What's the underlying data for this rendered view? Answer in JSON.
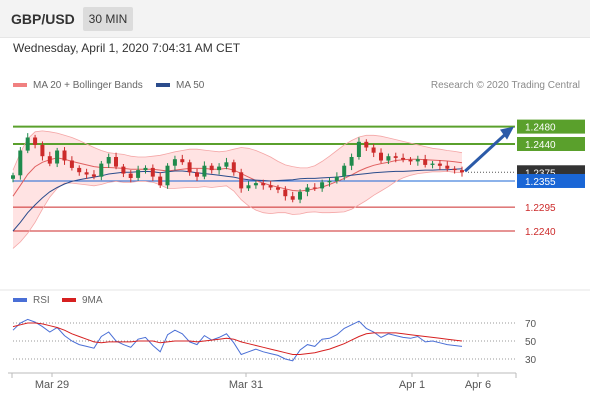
{
  "header": {
    "symbol": "GBP/USD",
    "timeframe": "30 MIN",
    "datetime": "Wednesday, April 1, 2020 7:04:31 AM CET"
  },
  "legend": {
    "ma20": "MA 20 + Bollinger Bands",
    "ma50": "MA 50",
    "ma20_color": "#f08080",
    "ma50_color": "#2b4c8c",
    "credit": "Research © 2020 Trading Central"
  },
  "chart_data": {
    "type": "candlestick",
    "symbol": "GBP/USD",
    "interval": "30 MIN",
    "date_ticks": [
      "Mar 29",
      "Mar 31",
      "Apr 1",
      "Apr 6"
    ],
    "current_price": 1.2375,
    "levels": [
      {
        "label": "1.2480",
        "value": 1.248,
        "kind": "target",
        "color": "#5aa02c"
      },
      {
        "label": "1.2440",
        "value": 1.244,
        "kind": "resistance",
        "color": "#5aa02c"
      },
      {
        "label": "1.2375",
        "value": 1.2375,
        "kind": "current",
        "color": "#333333"
      },
      {
        "label": "1.2355",
        "value": 1.2355,
        "kind": "pivot",
        "color": "#1a66d6"
      },
      {
        "label": "1.2295",
        "value": 1.2295,
        "kind": "support",
        "color": "#cc2a2a"
      },
      {
        "label": "1.2240",
        "value": 1.224,
        "kind": "support",
        "color": "#cc2a2a"
      }
    ],
    "outlook": "bullish",
    "price_series": [
      1.2368,
      1.2425,
      1.2455,
      1.2438,
      1.2412,
      1.2395,
      1.2425,
      1.2402,
      1.2385,
      1.2375,
      1.237,
      1.2365,
      1.2395,
      1.241,
      1.2388,
      1.2372,
      1.2362,
      1.238,
      1.2385,
      1.2365,
      1.2345,
      1.239,
      1.2405,
      1.2398,
      1.2375,
      1.2365,
      1.239,
      1.238,
      1.2388,
      1.2398,
      1.2375,
      1.2338,
      1.2345,
      1.235,
      1.2345,
      1.234,
      1.2335,
      1.232,
      1.2312,
      1.233,
      1.234,
      1.2338,
      1.2352,
      1.2355,
      1.2365,
      1.239,
      1.241,
      1.2445,
      1.2432,
      1.242,
      1.2402,
      1.2412,
      1.2408,
      1.2404,
      1.24,
      1.2405,
      1.2392,
      1.2395,
      1.239,
      1.2383,
      1.238,
      1.2375
    ],
    "ma50_series": [
      1.224,
      1.226,
      1.2282,
      1.23,
      1.2316,
      1.233,
      1.234,
      1.2348,
      1.2354,
      1.2358,
      1.2361,
      1.2364,
      1.2367,
      1.2371,
      1.2373,
      1.2375,
      1.2375,
      1.2376,
      1.2377,
      1.2376,
      1.2374,
      1.2376,
      1.2378,
      1.2378,
      1.2376,
      1.2374,
      1.2372,
      1.237,
      1.2368,
      1.2366,
      1.2364,
      1.236,
      1.2358,
      1.2357,
      1.2356,
      1.2355,
      1.2356,
      1.2357,
      1.2358,
      1.236,
      1.2361,
      1.2361,
      1.2362,
      1.2363,
      1.2364,
      1.2366,
      1.2368,
      1.237,
      1.2372,
      1.2374,
      1.2375,
      1.2376,
      1.2377,
      1.2377,
      1.2378,
      1.2379,
      1.238,
      1.238,
      1.2381,
      1.2381,
      1.2382,
      1.2383
    ],
    "ma20_series": [
      1.232,
      1.2345,
      1.237,
      1.2388,
      1.2398,
      1.2404,
      1.2408,
      1.2405,
      1.24,
      1.2396,
      1.2392,
      1.2388,
      1.2386,
      1.2386,
      1.2385,
      1.2384,
      1.2382,
      1.2382,
      1.2382,
      1.2382,
      1.238,
      1.2378,
      1.238,
      1.2382,
      1.2384,
      1.2384,
      1.2384,
      1.2382,
      1.2382,
      1.2384,
      1.238,
      1.2372,
      1.2364,
      1.2356,
      1.235,
      1.2345,
      1.2341,
      1.2337,
      1.2333,
      1.2332,
      1.2334,
      1.2337,
      1.2341,
      1.2347,
      1.2354,
      1.2361,
      1.2369,
      1.2378,
      1.2385,
      1.2391,
      1.2395,
      1.2398,
      1.2402,
      1.2404,
      1.2405,
      1.2405,
      1.2404,
      1.2403,
      1.2402,
      1.2401,
      1.2399,
      1.2397
    ],
    "bb_upper": [
      1.238,
      1.242,
      1.2452,
      1.2468,
      1.247,
      1.2468,
      1.2465,
      1.246,
      1.2455,
      1.2448,
      1.244,
      1.2432,
      1.2425,
      1.242,
      1.2418,
      1.2416,
      1.2412,
      1.241,
      1.241,
      1.2412,
      1.2414,
      1.2418,
      1.2422,
      1.2425,
      1.2428,
      1.2428,
      1.2426,
      1.2424,
      1.2422,
      1.2424,
      1.2428,
      1.2432,
      1.243,
      1.2425,
      1.2418,
      1.241,
      1.24,
      1.2392,
      1.2388,
      1.2385,
      1.2385,
      1.239,
      1.24,
      1.2412,
      1.2425,
      1.2438,
      1.2448,
      1.2456,
      1.246,
      1.246,
      1.2458,
      1.2454,
      1.245,
      1.2446,
      1.2442,
      1.2438,
      1.2434,
      1.243,
      1.2428,
      1.2425,
      1.2423,
      1.242
    ],
    "bb_lower": [
      1.22,
      1.2215,
      1.2235,
      1.226,
      1.229,
      1.2318,
      1.2338,
      1.235,
      1.235,
      1.2348,
      1.2346,
      1.2344,
      1.2347,
      1.2352,
      1.2354,
      1.2352,
      1.2352,
      1.2354,
      1.2354,
      1.2352,
      1.2346,
      1.2338,
      1.2338,
      1.2339,
      1.234,
      1.234,
      1.2342,
      1.234,
      1.2342,
      1.2344,
      1.2332,
      1.2312,
      1.2298,
      1.2288,
      1.2282,
      1.228,
      1.2282,
      1.2282,
      1.2278,
      1.2279,
      1.2283,
      1.2284,
      1.2282,
      1.2282,
      1.2283,
      1.2284,
      1.229,
      1.23,
      1.231,
      1.2322,
      1.2332,
      1.2342,
      1.2354,
      1.2362,
      1.2368,
      1.2372,
      1.2374,
      1.2376,
      1.2376,
      1.2377,
      1.2375,
      1.2374
    ],
    "rsi": {
      "label": "RSI",
      "ma_label": "9MA",
      "rsi_color": "#4a6fd6",
      "ma_color": "#d62020",
      "levels": [
        70,
        50,
        30
      ],
      "rsi_values": [
        62,
        70,
        74,
        71,
        66,
        60,
        65,
        56,
        50,
        46,
        44,
        42,
        55,
        60,
        50,
        46,
        43,
        52,
        54,
        45,
        38,
        57,
        62,
        58,
        49,
        46,
        56,
        51,
        54,
        58,
        48,
        35,
        38,
        41,
        38,
        36,
        34,
        30,
        28,
        40,
        46,
        44,
        52,
        53,
        57,
        64,
        68,
        72,
        64,
        60,
        54,
        58,
        56,
        54,
        53,
        55,
        49,
        50,
        48,
        46,
        45,
        44
      ],
      "ma_values": [
        66,
        68,
        70,
        70,
        69,
        67,
        65,
        62,
        58,
        55,
        52,
        49,
        48,
        49,
        49,
        49,
        49,
        50,
        50,
        50,
        48,
        49,
        50,
        50,
        50,
        49,
        50,
        51,
        52,
        53,
        52,
        49,
        47,
        45,
        43,
        41,
        39,
        37,
        35,
        35,
        36,
        37,
        39,
        41,
        44,
        47,
        51,
        55,
        58,
        59,
        59,
        59,
        59,
        58,
        57,
        56,
        55,
        54,
        53,
        52,
        51,
        50
      ]
    }
  }
}
